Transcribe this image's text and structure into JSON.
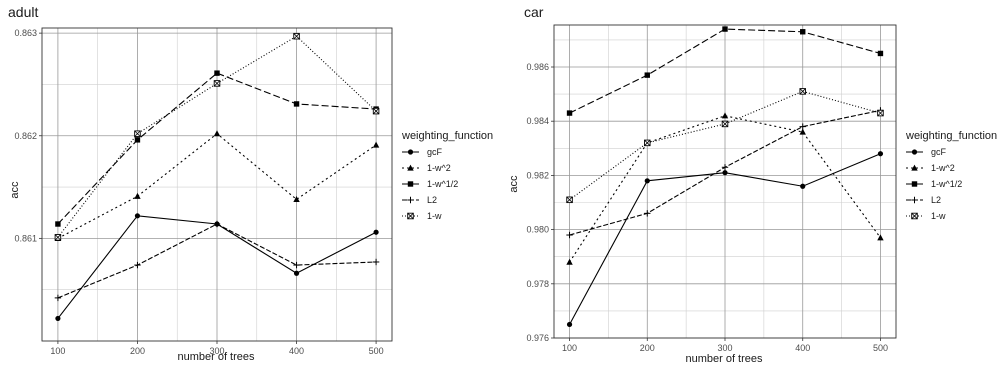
{
  "chart_data": [
    {
      "type": "line",
      "title": "adult",
      "xlabel": "number of trees",
      "ylabel": "acc",
      "x": [
        100,
        200,
        300,
        400,
        500
      ],
      "x_tick_labels": [
        "100",
        "200",
        "300",
        "400",
        "500"
      ],
      "ylim": [
        0.86,
        0.86305
      ],
      "y_ticks": [
        0.861,
        0.862,
        0.863
      ],
      "y_tick_labels": [
        "0.861",
        "0.862",
        "0.863"
      ],
      "grid": true,
      "legend_position": "right",
      "legend_title": "weighting_function",
      "series": [
        {
          "name": "gcF",
          "values": [
            0.86022,
            0.86122,
            0.86114,
            0.86066,
            0.86106
          ]
        },
        {
          "name": "1-w^2",
          "values": [
            0.861,
            0.86141,
            0.86202,
            0.86138,
            0.86191
          ]
        },
        {
          "name": "1-w^1/2",
          "values": [
            0.86114,
            0.86196,
            0.86261,
            0.86231,
            0.86226
          ]
        },
        {
          "name": "L2",
          "values": [
            0.86042,
            0.86074,
            0.86114,
            0.86074,
            0.86077
          ]
        },
        {
          "name": "1-w",
          "values": [
            0.86101,
            0.86202,
            0.86251,
            0.86297,
            0.86224
          ]
        }
      ]
    },
    {
      "type": "line",
      "title": "car",
      "xlabel": "number of trees",
      "ylabel": "acc",
      "x": [
        100,
        200,
        300,
        400,
        500
      ],
      "x_tick_labels": [
        "100",
        "200",
        "300",
        "400",
        "500"
      ],
      "ylim": [
        0.976,
        0.98755
      ],
      "y_ticks": [
        0.976,
        0.978,
        0.98,
        0.982,
        0.984,
        0.986
      ],
      "y_tick_labels": [
        "0.976",
        "0.978",
        "0.980",
        "0.982",
        "0.984",
        "0.986"
      ],
      "grid": true,
      "legend_position": "right",
      "legend_title": "weighting_function",
      "series": [
        {
          "name": "gcF",
          "values": [
            0.9765,
            0.9818,
            0.9821,
            0.9816,
            0.9828
          ]
        },
        {
          "name": "1-w^2",
          "values": [
            0.9788,
            0.9832,
            0.9842,
            0.9836,
            0.9797
          ]
        },
        {
          "name": "1-w^1/2",
          "values": [
            0.9843,
            0.9857,
            0.9874,
            0.9873,
            0.9865
          ]
        },
        {
          "name": "L2",
          "values": [
            0.9798,
            0.9806,
            0.9823,
            0.9838,
            0.9844
          ]
        },
        {
          "name": "1-w",
          "values": [
            0.9811,
            0.9832,
            0.9839,
            0.9851,
            0.9843
          ]
        }
      ]
    }
  ],
  "styles": [
    {
      "name": "gcF",
      "dash": "",
      "marker": "circle",
      "color": "#000000"
    },
    {
      "name": "1-w^2",
      "dash": "2,3",
      "marker": "triangle",
      "color": "#000000"
    },
    {
      "name": "1-w^1/2",
      "dash": "7,3",
      "marker": "square",
      "color": "#000000"
    },
    {
      "name": "L2",
      "dash": "5,2",
      "marker": "plus",
      "color": "#000000"
    },
    {
      "name": "1-w",
      "dash": "1,2",
      "marker": "boxx",
      "color": "#000000"
    }
  ],
  "grid_colors": {
    "major": "#999999",
    "minor": "#cfcfcf",
    "panel_border": "#333333"
  }
}
